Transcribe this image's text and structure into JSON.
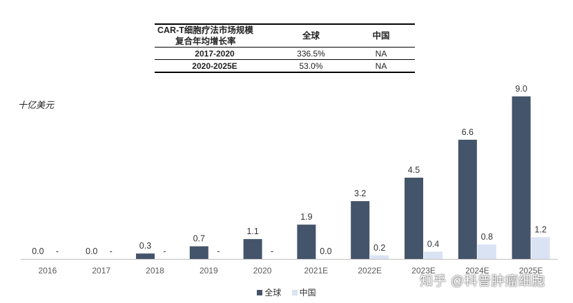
{
  "table": {
    "header_line1": "CAR-T细胞疗法市场规模",
    "header_line2": "复合年均增长率",
    "col_global": "全球",
    "col_china": "中国",
    "rows": [
      {
        "period": "2017-2020",
        "global": "336.5%",
        "china": "NA"
      },
      {
        "period": "2020-2025E",
        "global": "53.0%",
        "china": "NA"
      }
    ]
  },
  "unit_label": "十亿美元",
  "watermark": "知乎 @科普肿瘤细胞",
  "colors": {
    "global": "#44546a",
    "china": "#dae3f3",
    "axis": "#bfbfbf",
    "text": "#404040"
  },
  "chart_data": {
    "type": "bar",
    "categories": [
      "2016",
      "2017",
      "2018",
      "2019",
      "2020",
      "2021E",
      "2022E",
      "2023E",
      "2024E",
      "2025E"
    ],
    "series": [
      {
        "name": "全球",
        "values": [
          0.0,
          0.0,
          0.3,
          0.7,
          1.1,
          1.9,
          3.2,
          4.5,
          6.6,
          9.0
        ],
        "labels": [
          "0.0",
          "0.0",
          "0.3",
          "0.7",
          "1.1",
          "1.9",
          "3.2",
          "4.5",
          "6.6",
          "9.0"
        ]
      },
      {
        "name": "中国",
        "values": [
          null,
          null,
          null,
          null,
          null,
          0.0,
          0.2,
          0.4,
          0.8,
          1.2
        ],
        "labels": [
          "-",
          "-",
          "-",
          "-",
          "-",
          "0.0",
          "0.2",
          "0.4",
          "0.8",
          "1.2"
        ]
      }
    ],
    "ylabel": "十亿美元",
    "ylim": [
      0,
      9.0
    ],
    "grid": false,
    "legend": "bottom-center"
  }
}
